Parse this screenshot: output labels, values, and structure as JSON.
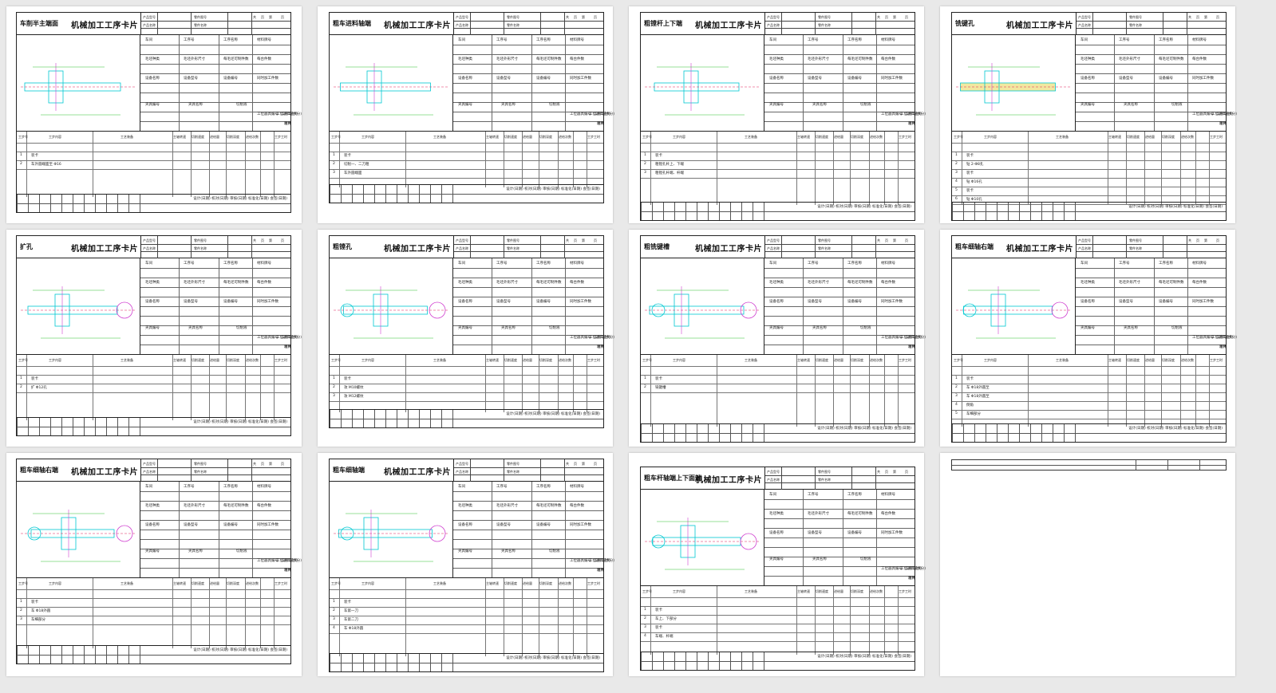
{
  "cards": [
    {
      "process": "车削半主端面",
      "title": "机械加工工序卡片",
      "steps": [
        "装卡",
        "车外圆端面至 Φ16"
      ]
    },
    {
      "process": "粗车进料轴端",
      "title": "机械加工工序卡片",
      "steps": [
        "装卡",
        "切削一、二刀粗",
        "车外圆端面"
      ]
    },
    {
      "process": "粗镗杆上下端",
      "title": "机械加工工序卡片",
      "steps": [
        "装卡",
        "粗镗孔杆上、下端",
        "粗镗孔杆端、杆端"
      ]
    },
    {
      "process": "铣键孔",
      "title": "机械加工工序卡片",
      "steps": [
        "装卡",
        "钻 2-Φ8孔",
        "装卡",
        "钻 Φ16孔",
        "装卡",
        "钻 Φ10孔"
      ]
    },
    {
      "process": "扩孔",
      "title": "机械加工工序卡片",
      "steps": [
        "装卡",
        "扩 Φ12孔"
      ]
    },
    {
      "process": "粗镗孔",
      "title": "机械加工工序卡片",
      "steps": [
        "装卡",
        "攻 M10螺纹",
        "攻 M12螺纹"
      ]
    },
    {
      "process": "粗铣键槽",
      "title": "机械加工工序卡片",
      "steps": [
        "装卡",
        "铣键槽"
      ]
    },
    {
      "process": "粗车细轴右端",
      "title": "机械加工工序卡片",
      "steps": [
        "装卡",
        "车 Φ18外圆至",
        "车 Φ18外圆至",
        "倒角",
        "车细部分"
      ]
    },
    {
      "process": "粗车细轴右端",
      "title": "机械加工工序卡片",
      "steps": [
        "装卡",
        "车 Φ18外圆",
        "车细部分"
      ]
    },
    {
      "process": "粗车细轴端",
      "title": "机械加工工序卡片",
      "steps": [
        "装卡",
        "车第一刀",
        "车第二刀",
        "车 Φ18外圆"
      ]
    },
    {
      "process": "粗车杆轴端上下面端",
      "title": "机械加工工序卡片",
      "steps": [
        "装卡",
        "车上、下部分",
        "装卡",
        "车端、杆端"
      ]
    }
  ],
  "header_labels": [
    "产品型号",
    "零件图号",
    "产品名称",
    "零件名称",
    "共",
    "页",
    "第",
    "页"
  ],
  "info_labels": [
    "车间",
    "工序号",
    "工序名称",
    "材料牌号",
    "毛坯种类",
    "毛坯外形尺寸",
    "每毛坯可制件数",
    "每台件数",
    "设备名称",
    "设备型号",
    "设备编号",
    "同时加工件数",
    "夹具编号",
    "夹具名称",
    "切削液",
    "工位器具编号",
    "工位器具名称",
    "工序工时(分)",
    "准终",
    "单件"
  ],
  "step_headers": [
    "工步号",
    "工步内容",
    "工艺装备",
    "主轴转速",
    "切削速度",
    "进给量",
    "切削深度",
    "进给次数",
    "工步工时"
  ],
  "footer_labels": "设计(日期)  校对(日期)  审核(日期)  标准化(日期)  会签(日期)",
  "colors": {
    "cyan": "#00c8d2",
    "red": "#e0205a",
    "magenta": "#d040d0",
    "green": "#30c030",
    "yellow": "#f2e8a0"
  }
}
